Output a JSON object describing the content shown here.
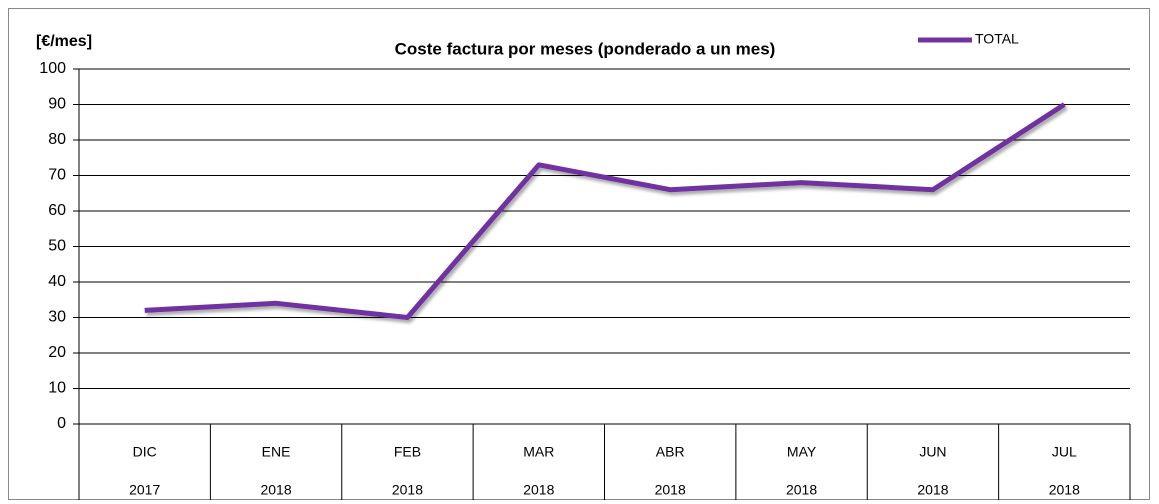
{
  "chart_data": {
    "type": "line",
    "title": "Coste factura por meses (ponderado a un mes)",
    "y_label": "[€/mes]",
    "categories": [
      [
        "DIC",
        "2017"
      ],
      [
        "ENE",
        "2018"
      ],
      [
        "FEB",
        "2018"
      ],
      [
        "MAR",
        "2018"
      ],
      [
        "ABR",
        "2018"
      ],
      [
        "MAY",
        "2018"
      ],
      [
        "JUN",
        "2018"
      ],
      [
        "JUL",
        "2018"
      ]
    ],
    "series": [
      {
        "name": "TOTAL",
        "color": "#7030a0",
        "values": [
          32,
          34,
          30,
          73,
          66,
          68,
          66,
          90
        ]
      }
    ],
    "ylim": [
      0,
      100
    ],
    "yticks": [
      0,
      10,
      20,
      30,
      40,
      50,
      60,
      70,
      80,
      90,
      100
    ],
    "grid": true,
    "legend": "top-right"
  }
}
